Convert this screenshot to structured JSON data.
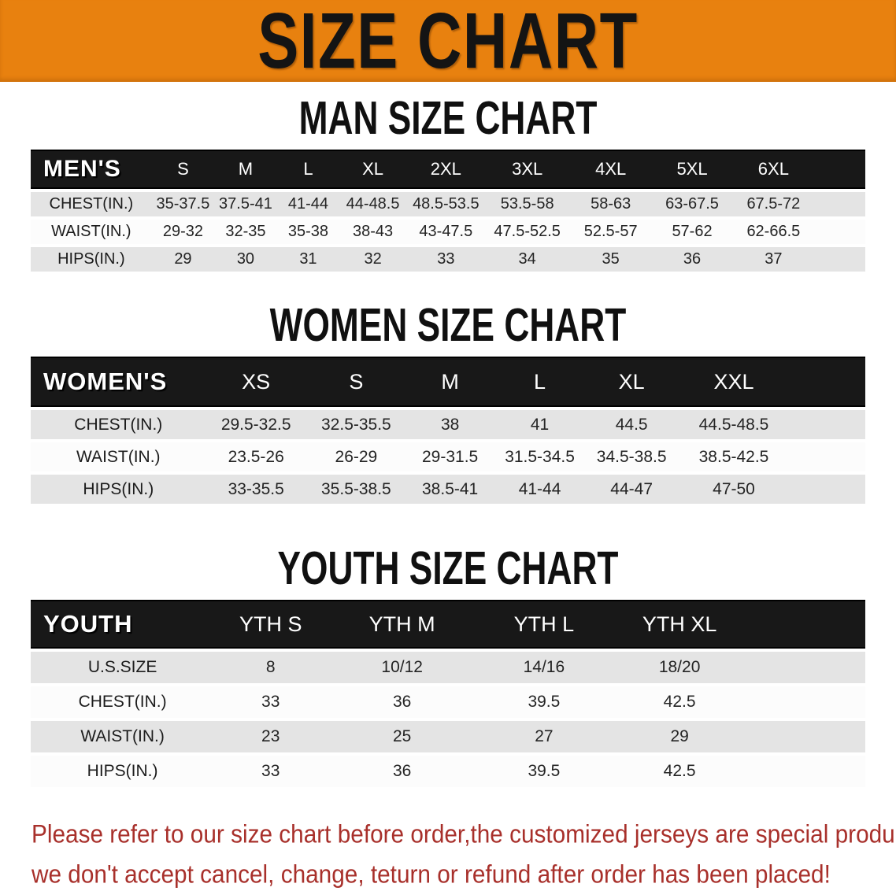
{
  "banner": {
    "title": "SIZE CHART",
    "bg_color": "#E8810F",
    "text_color": "#141414"
  },
  "sections": [
    {
      "heading": "MAN SIZE CHART",
      "table": {
        "header_label": "MEN'S",
        "columns": [
          "S",
          "M",
          "L",
          "XL",
          "2XL",
          "3XL",
          "4XL",
          "5XL",
          "6XL"
        ],
        "rows": [
          {
            "label": "CHEST(IN.)",
            "values": [
              "35-37.5",
              "37.5-41",
              "41-44",
              "44-48.5",
              "48.5-53.5",
              "53.5-58",
              "58-63",
              "63-67.5",
              "67.5-72"
            ]
          },
          {
            "label": "WAIST(IN.)",
            "values": [
              "29-32",
              "32-35",
              "35-38",
              "38-43",
              "43-47.5",
              "47.5-52.5",
              "52.5-57",
              "57-62",
              "62-66.5"
            ]
          },
          {
            "label": "HIPS(IN.)",
            "values": [
              "29",
              "30",
              "31",
              "32",
              "33",
              "34",
              "35",
              "36",
              "37"
            ]
          }
        ]
      }
    },
    {
      "heading": "WOMEN SIZE CHART",
      "table": {
        "header_label": "WOMEN'S",
        "columns": [
          "XS",
          "S",
          "M",
          "L",
          "XL",
          "XXL"
        ],
        "rows": [
          {
            "label": "CHEST(IN.)",
            "values": [
              "29.5-32.5",
              "32.5-35.5",
              "38",
              "41",
              "44.5",
              "44.5-48.5"
            ]
          },
          {
            "label": "WAIST(IN.)",
            "values": [
              "23.5-26",
              "26-29",
              "29-31.5",
              "31.5-34.5",
              "34.5-38.5",
              "38.5-42.5"
            ]
          },
          {
            "label": "HIPS(IN.)",
            "values": [
              "33-35.5",
              "35.5-38.5",
              "38.5-41",
              "41-44",
              "44-47",
              "47-50"
            ]
          }
        ]
      }
    },
    {
      "heading": "YOUTH SIZE CHART",
      "table": {
        "header_label": "YOUTH",
        "columns": [
          "YTH S",
          "YTH M",
          "YTH L",
          "YTH XL"
        ],
        "rows": [
          {
            "label": "U.S.SIZE",
            "values": [
              "8",
              "10/12",
              "14/16",
              "18/20"
            ]
          },
          {
            "label": "CHEST(IN.)",
            "values": [
              "33",
              "36",
              "39.5",
              "42.5"
            ]
          },
          {
            "label": "WAIST(IN.)",
            "values": [
              "23",
              "25",
              "27",
              "29"
            ]
          },
          {
            "label": "HIPS(IN.)",
            "values": [
              "33",
              "36",
              "39.5",
              "42.5"
            ]
          }
        ]
      }
    }
  ],
  "notice": {
    "color": "#A8302B",
    "line1": "Please refer to our size chart before order,the customized jerseys are special products,",
    "line2": "we don't accept cancel, change, teturn or refund after order has been placed!"
  }
}
